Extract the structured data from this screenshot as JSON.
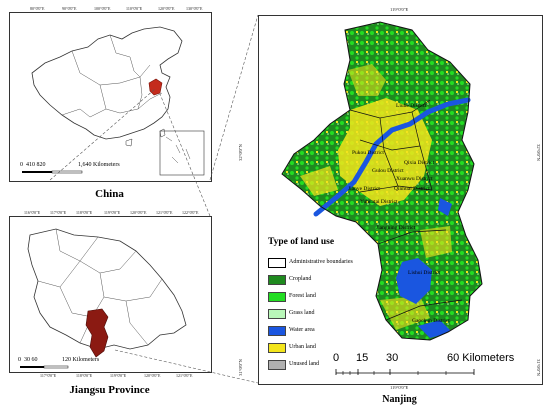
{
  "panels": {
    "china": {
      "caption": "China",
      "ticks_top": [
        "80°0'0\"E",
        "90°0'0\"E",
        "100°0'0\"E",
        "110°0'0\"E",
        "120°0'0\"E",
        "130°0'0\"E"
      ],
      "scale_numbers": "0  410 820",
      "scale_units": "1,640 Kilometers"
    },
    "jiangsu": {
      "caption": "Jiangsu Province",
      "ticks_top": [
        "116°0'0\"E",
        "117°0'0\"E",
        "118°0'0\"E",
        "119°0'0\"E",
        "120°0'0\"E",
        "121°0'0\"E",
        "122°0'0\"E"
      ],
      "ticks_bottom": [
        "117°0'0\"E",
        "118°0'0\"E",
        "119°0'0\"E",
        "120°0'0\"E",
        "121°0'0\"E"
      ],
      "scale_numbers": "0  30 60",
      "scale_units": "120 Kilometers"
    },
    "nanjing": {
      "caption": "Nanjing",
      "tick_top": "119°0'0\"E",
      "tick_bottom": "119°0'0\"E",
      "tick_left_top": "32°0'0\"N",
      "tick_left_bottom": "31°0'0\"N",
      "tick_right_top": "32°0'0\"N",
      "tick_right_bottom": "31°0'0\"N",
      "legend_title": "Type of land use",
      "legend": [
        {
          "label": "Administrative boundaries",
          "color": "#ffffff"
        },
        {
          "label": "Cropland",
          "color": "#1f8a1f"
        },
        {
          "label": "Forest land",
          "color": "#22dd22"
        },
        {
          "label": "Grass land",
          "color": "#b9f7b9"
        },
        {
          "label": "Water area",
          "color": "#1a56e0"
        },
        {
          "label": "Urban land",
          "color": "#f3e51c"
        },
        {
          "label": "Unused land",
          "color": "#b0b0b0"
        }
      ],
      "scale_labels": [
        "0",
        "15",
        "30",
        "60 Kilometers"
      ],
      "districts": [
        "Liuhe District",
        "Pukou District",
        "Qixia District",
        "Gulou District",
        "Xuanwu District",
        "Jianye District",
        "Qinhuai District",
        "Yuhuatai District",
        "Jiangning District",
        "Lishui District",
        "Gaochun District"
      ]
    }
  }
}
